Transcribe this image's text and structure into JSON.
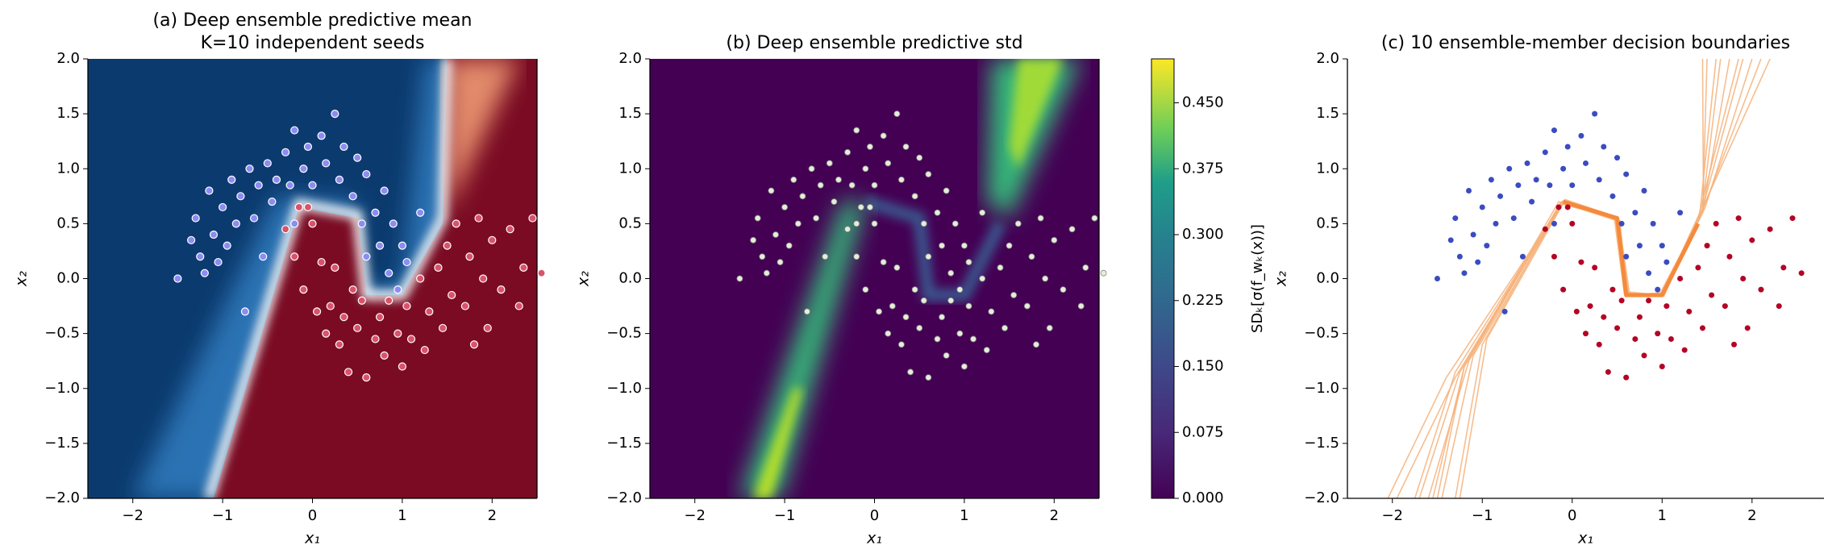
{
  "chart_data": [
    {
      "type": "contour-scatter",
      "title": "(a) Deep ensemble predictive mean",
      "subtitle": "K=10 independent seeds",
      "xlabel": "x₁",
      "ylabel": "x₂",
      "xlim": [
        -2.5,
        2.5
      ],
      "ylim": [
        -2.0,
        2.0
      ],
      "xticks": [
        {
          "value": -2,
          "label": "−2"
        },
        {
          "value": -1,
          "label": "−1"
        },
        0,
        1,
        2
      ],
      "yticks": [
        {
          "value": -2,
          "label": "−2.0"
        },
        {
          "value": -1.5,
          "label": "−1.5"
        },
        {
          "value": -1,
          "label": "−1.0"
        },
        {
          "value": -0.5,
          "label": "−0.5"
        },
        {
          "value": 0,
          "label": "0.0"
        },
        0.5,
        {
          "value": 1,
          "label": "1.0"
        },
        1.5,
        {
          "value": 2,
          "label": "2.0"
        }
      ],
      "series": [
        {
          "color": "#8c8cf2",
          "x": [
            -1.5,
            -1.35,
            -1.3,
            -1.25,
            -1.2,
            -1.15,
            -1.1,
            -1.05,
            -1.0,
            -0.95,
            -0.9,
            -0.85,
            -0.8,
            -0.75,
            -0.7,
            -0.65,
            -0.6,
            -0.55,
            -0.5,
            -0.45,
            -0.4,
            -0.3,
            -0.25,
            -0.2,
            -0.1,
            -0.05,
            0.0,
            0.1,
            0.15,
            0.25,
            0.3,
            0.35,
            0.45,
            0.5,
            0.55,
            0.6,
            0.7,
            0.75,
            0.8,
            0.85,
            0.9,
            0.95,
            1.0,
            1.05,
            1.2,
            -0.2,
            0.6
          ],
          "values": [
            0.0,
            0.35,
            0.55,
            0.2,
            0.05,
            0.8,
            0.4,
            0.15,
            0.65,
            0.3,
            0.9,
            0.5,
            0.75,
            -0.3,
            1.0,
            0.55,
            0.85,
            0.2,
            1.05,
            0.7,
            0.9,
            1.15,
            0.85,
            1.35,
            1.0,
            1.2,
            0.85,
            1.3,
            1.05,
            1.5,
            0.9,
            1.2,
            0.75,
            1.1,
            0.5,
            0.95,
            0.6,
            0.3,
            0.8,
            0.05,
            0.5,
            -0.1,
            0.3,
            0.15,
            0.6,
            0.5,
            0.2
          ]
        },
        {
          "color": "#d9536a",
          "x": [
            -0.3,
            -0.2,
            -0.1,
            0.0,
            0.05,
            0.1,
            0.15,
            0.2,
            0.25,
            0.3,
            0.35,
            0.4,
            0.45,
            0.5,
            0.55,
            0.6,
            0.7,
            0.75,
            0.8,
            0.85,
            0.95,
            1.0,
            1.05,
            1.1,
            1.2,
            1.25,
            1.3,
            1.4,
            1.45,
            1.5,
            1.55,
            1.6,
            1.7,
            1.75,
            1.8,
            1.85,
            1.9,
            1.95,
            2.0,
            2.1,
            2.2,
            2.3,
            2.35,
            2.45,
            2.55,
            -0.05,
            -0.15
          ],
          "values": [
            0.45,
            0.2,
            -0.1,
            0.5,
            -0.3,
            0.15,
            -0.5,
            -0.25,
            0.1,
            -0.6,
            -0.35,
            -0.85,
            -0.1,
            -0.45,
            -0.2,
            -0.9,
            -0.55,
            -0.35,
            -0.7,
            -0.2,
            -0.5,
            -0.8,
            -0.25,
            -0.55,
            0.0,
            -0.65,
            -0.3,
            0.1,
            -0.45,
            0.3,
            -0.15,
            0.5,
            -0.25,
            0.2,
            -0.6,
            0.55,
            0.0,
            -0.45,
            0.35,
            -0.1,
            0.45,
            -0.25,
            0.1,
            0.55,
            0.05,
            0.65,
            0.65
          ]
        }
      ]
    },
    {
      "type": "contour-scatter",
      "title": "(b) Deep ensemble predictive std",
      "xlabel": "x₁",
      "ylabel": "x₂",
      "xlim": [
        -2.5,
        2.5
      ],
      "ylim": [
        -2.0,
        2.0
      ],
      "xticks": [
        {
          "value": -2,
          "label": "−2"
        },
        {
          "value": -1,
          "label": "−1"
        },
        0,
        1,
        2
      ],
      "yticks": [
        {
          "value": -2,
          "label": "−2.0"
        },
        {
          "value": -1.5,
          "label": "−1.5"
        },
        {
          "value": -1,
          "label": "−1.0"
        },
        {
          "value": -0.5,
          "label": "−0.5"
        },
        {
          "value": 0,
          "label": "0.0"
        },
        0.5,
        {
          "value": 1,
          "label": "1.0"
        },
        1.5,
        {
          "value": 2,
          "label": "2.0"
        }
      ],
      "point_color": "#e4eed8",
      "colorbar": {
        "label": "SDₖ[σ(f_wₖ(x))]",
        "zlim": [
          0,
          0.5
        ],
        "ticks": [
          {
            "value": 0,
            "label": "0.000"
          },
          {
            "value": 0.075,
            "label": "0.075"
          },
          {
            "value": 0.15,
            "label": "0.150"
          },
          {
            "value": 0.225,
            "label": "0.225"
          },
          {
            "value": 0.3,
            "label": "0.300"
          },
          {
            "value": 0.375,
            "label": "0.375"
          },
          {
            "value": 0.45,
            "label": "0.450"
          }
        ]
      }
    },
    {
      "type": "boundaries",
      "title": "(c) 10 ensemble-member decision boundaries",
      "xlabel": "x₁",
      "ylabel": "x₂",
      "xlim": [
        -2.5,
        2.8
      ],
      "ylim": [
        -2.0,
        2.0
      ],
      "xticks": [
        {
          "value": -2,
          "label": "−2"
        },
        {
          "value": -1,
          "label": "−1"
        },
        0,
        1,
        2
      ],
      "yticks": [
        {
          "value": -2,
          "label": "−2.0"
        },
        {
          "value": -1.5,
          "label": "−1.5"
        },
        {
          "value": -1,
          "label": "−1.0"
        },
        {
          "value": -0.5,
          "label": "−0.5"
        },
        {
          "value": 0,
          "label": "0.0"
        },
        0.5,
        {
          "value": 1,
          "label": "1.0"
        },
        1.5,
        {
          "value": 2,
          "label": "2.0"
        }
      ],
      "point_colors": [
        "#3b4cc0",
        "#b40426"
      ],
      "member_color": "#f6b27a",
      "boundary": {
        "color": "#f58a3c",
        "x": [
          -0.1,
          0.5,
          0.6,
          1.0,
          1.4
        ],
        "values": [
          0.7,
          0.55,
          -0.15,
          -0.15,
          0.5
        ]
      },
      "members": [
        {
          "x": [
            -2.05,
            -1.4,
            -0.1,
            0.5,
            0.62,
            1.0,
            1.45,
            1.5
          ],
          "values": [
            -2,
            -0.9,
            0.7,
            0.55,
            -0.15,
            -0.15,
            0.6,
            2
          ]
        },
        {
          "x": [
            -1.95,
            -1.3,
            -0.12,
            0.48,
            0.6,
            1.0,
            1.42,
            1.6
          ],
          "values": [
            -2,
            -0.9,
            0.68,
            0.55,
            -0.12,
            -0.15,
            0.6,
            2
          ]
        },
        {
          "x": [
            -1.55,
            -1.2,
            -0.15,
            0.52,
            0.64,
            0.98,
            1.45,
            1.75
          ],
          "values": [
            -2,
            -0.8,
            0.7,
            0.52,
            -0.15,
            -0.13,
            0.6,
            2
          ]
        },
        {
          "x": [
            -1.45,
            -1.1,
            -0.08,
            0.5,
            0.6,
            1.02,
            1.4,
            1.85
          ],
          "values": [
            -2,
            -0.7,
            0.72,
            0.56,
            -0.16,
            -0.16,
            0.55,
            2
          ]
        },
        {
          "x": [
            -1.7,
            -1.25,
            -0.1,
            0.47,
            0.58,
            1.0,
            1.48,
            2.0
          ],
          "values": [
            -2,
            -0.85,
            0.7,
            0.54,
            -0.14,
            -0.15,
            0.65,
            2
          ]
        },
        {
          "x": [
            -1.6,
            -1.15,
            -0.13,
            0.5,
            0.63,
            1.01,
            1.44,
            2.1
          ],
          "values": [
            -2,
            -0.75,
            0.69,
            0.55,
            -0.15,
            -0.14,
            0.6,
            2
          ]
        },
        {
          "x": [
            -1.3,
            -1.0,
            -0.1,
            0.53,
            0.61,
            0.99,
            1.4,
            2.2
          ],
          "values": [
            -2,
            -0.6,
            0.71,
            0.53,
            -0.15,
            -0.15,
            0.55,
            2
          ]
        },
        {
          "x": [
            -1.5,
            -1.2,
            -0.12,
            0.49,
            0.59,
            1.0,
            1.46,
            1.45
          ],
          "values": [
            -2,
            -0.8,
            0.7,
            0.55,
            -0.13,
            -0.16,
            0.62,
            2
          ]
        },
        {
          "x": [
            -1.25,
            -0.95,
            -0.09,
            0.51,
            0.62,
            1.0,
            1.43,
            1.9
          ],
          "values": [
            -2,
            -0.55,
            0.7,
            0.54,
            -0.15,
            -0.15,
            0.58,
            2
          ]
        },
        {
          "x": [
            -1.75,
            -1.3,
            -0.11,
            0.5,
            0.6,
            1.0,
            1.44,
            1.65
          ],
          "values": [
            -2,
            -0.85,
            0.7,
            0.55,
            -0.15,
            -0.15,
            0.6,
            2
          ]
        }
      ]
    }
  ]
}
